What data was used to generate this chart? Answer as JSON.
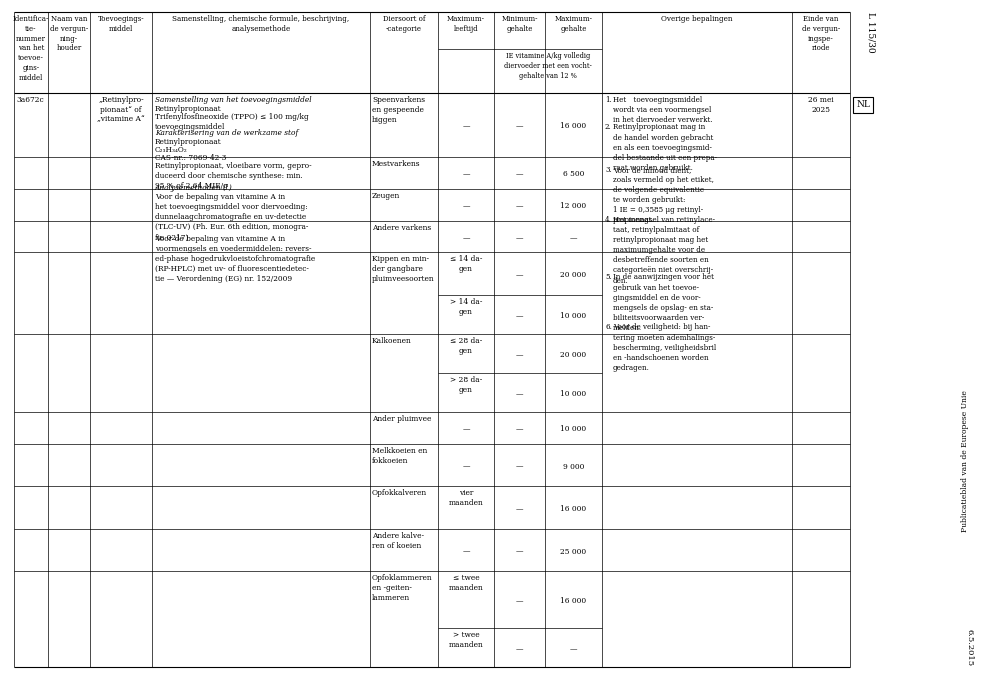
{
  "bg_color": "#ffffff",
  "text_color": "#000000",
  "border_color": "#000000",
  "col1_header": "Identifica-\ntie-\nnummer\nvan het\ntoevoe-\ngins-\nmiddel",
  "col2_header": "Naam van\nde vergun-\nning-\nhouder",
  "col3_header": "Toevoegings-\nmiddel",
  "col4_header": "Samenstelling, chemische formule, beschrijving,\nanalysemethode",
  "col5_header": "Diersoort of\n-categorie",
  "col6_header": "Maximum-\nleeftijd",
  "col7_header": "Minimum-\ngehalte",
  "col8_header": "Maximum-\ngehalte",
  "col9_header": "Overige bepalingen",
  "col10_header": "Einde van\nde vergun-\ningspe-\nriode",
  "subheader_78": "IE vitamine A/kg volledig\ndiervoeder met een vocht-\ngehalte van 12 %",
  "margin_L": "L 115/30",
  "margin_NL": "NL",
  "margin_pub": "Publicatieblad van de Europese Unie",
  "margin_date": "6.5.2015",
  "col1_data": "3a672c",
  "col3_data": "„Retinylpro-\npionaat“ of\n„vitamine A“",
  "col4_data_italic1": "Samenstelling van het toevoegingsmiddel",
  "col4_data1": "Retinylpropionaat",
  "col4_data2": "Trifenylfosfineoxide (TPPO) ≤ 100 mg/kg\ntoevoegingsmiddel",
  "col4_data_italic2": "Karakterisering van de werkzame stof",
  "col4_data3": "Retinylpropionaat",
  "col4_data4": "C₂₃H₃₄O₂",
  "col4_data5": "CAS-nr.: 7069-42-3",
  "col4_data6": "Retinylpropionaat, vloeibare vorm, gepro-\nduceerd door chemische synthese: min.\n95 % of 2,64 MIE/g",
  "col4_data_italic3": "Analysemethoden (¹)",
  "col4_data7": "Voor de bepaling van vitamine A in\nhet toevoegingsmiddel voor diervoeding:\ndunnelaagchromatografie en uv-detectie\n(TLC-UV) (Ph. Eur. 6th edition, monogra-\nfie 0217)",
  "col4_data8": "Voor de bepaling van vitamine A in\nvoormengsels en voedermiddelen: revers-\ned-phase hogedrukvloeistofchromatografie\n(RP-HPLC) met uv- of fluorescentiedetec-\ntie — Verordening (EG) nr. 152/2009",
  "rows": [
    {
      "animal": "Speenvarkens\nen gespeende\nbiggen",
      "max_age": "—",
      "min": "—",
      "max": "16 000",
      "age_is_dash": true
    },
    {
      "animal": "Mestvarkens",
      "max_age": "—",
      "min": "—",
      "max": "6 500",
      "age_is_dash": true
    },
    {
      "animal": "Zeugen",
      "max_age": "—",
      "min": "—",
      "max": "12 000",
      "age_is_dash": true
    },
    {
      "animal": "Andere varkens",
      "max_age": "—",
      "min": "—",
      "max": "—",
      "age_is_dash": true
    },
    {
      "animal": "Kippen en min-\nder gangbare\npluimveesoorten",
      "max_age": "≤ 14 da-\ngen",
      "min": "—",
      "max": "20 000",
      "age_is_dash": false,
      "merge_next": true
    },
    {
      "animal": "",
      "max_age": "> 14 da-\ngen",
      "min": "—",
      "max": "10 000",
      "age_is_dash": false,
      "sub_row": true
    },
    {
      "animal": "Kalkoenen",
      "max_age": "≤ 28 da-\ngen",
      "min": "—",
      "max": "20 000",
      "age_is_dash": false,
      "merge_next": true
    },
    {
      "animal": "",
      "max_age": "> 28 da-\ngen",
      "min": "—",
      "max": "10 000",
      "age_is_dash": false,
      "sub_row": true
    },
    {
      "animal": "Ander pluimvee",
      "max_age": "—",
      "min": "—",
      "max": "10 000",
      "age_is_dash": true
    },
    {
      "animal": "Melkkoeien en\nfokkoeien",
      "max_age": "—",
      "min": "—",
      "max": "9 000",
      "age_is_dash": true
    },
    {
      "animal": "Opfokkalveren",
      "max_age": "vier\nmaanden",
      "min": "—",
      "max": "16 000",
      "age_is_dash": false
    },
    {
      "animal": "Andere kalve-\nren of koeien",
      "max_age": "—",
      "min": "—",
      "max": "25 000",
      "age_is_dash": true
    },
    {
      "animal": "Opfoklammeren\nen -geiten-\nlammeren",
      "max_age": "≤ twee\nmaanden",
      "min": "—",
      "max": "16 000",
      "age_is_dash": false,
      "merge_next": true
    },
    {
      "animal": "",
      "max_age": "> twee\nmaanden",
      "min": "—",
      "max": "—",
      "age_is_dash": false,
      "sub_row": true
    }
  ],
  "overige_numbered": [
    "1. Het  toevoegingsmiddel wordt via een voormengsel in het diervoeder verwerkt.",
    "2. Retinylpropionaat mag in de handel worden gebracht en als een toevoegingsmiddel bestaande uit een preparaat worden gebruikt.",
    "3. Voor de inhoud dient, zoals vermeld op het etiket, de volgende equivalentie te worden gebruikt:\n1 IE = 0,3585 μg retinylpropionaat.",
    "4. Het mengsel van retinylacetaat, retinylpalmitaat of retinylpropionaat mag het maximumgehalte voor de desbetreffende soorten en categorieën niet overschrijden.",
    "5. In de aanwijzingen voor het gebruik van het toevoegingsmiddel en de voormengsels de opslag- en stabiliteitsvoorwaarden vermelden.",
    "6. Voor de veiligheid: bij hantering moeten ademhalingsbescherming, veiligheidsbril en -handschoenen worden gedragen."
  ],
  "einde_text": "26 mei\n2025"
}
